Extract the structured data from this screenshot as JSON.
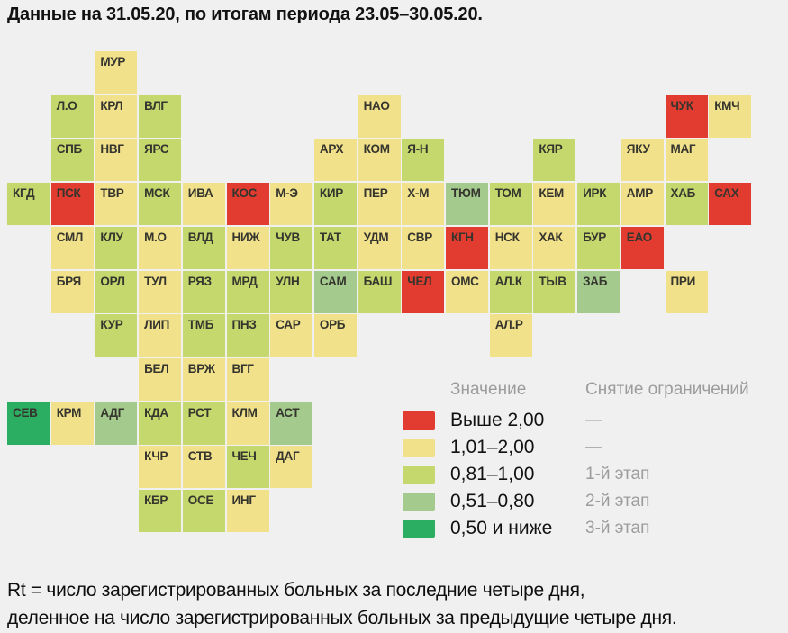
{
  "title": "Данные на 31.05.20, по итогам периода 23.05–30.05.20.",
  "footnote": {
    "line1": "Rt = число зарегистрированных больных за последние четыре дня,",
    "line2": "деленное на число зарегистрированных больных за предыдущие четыре дня."
  },
  "legend_headers": {
    "value": "Значение",
    "stage": "Снятие ограничений"
  },
  "chart_data": {
    "type": "heatmap",
    "title": "Данные на 31.05.20, по итогам периода 23.05–30.05.20.",
    "metric": "Rt",
    "grid": {
      "columns": 17,
      "rows": 11
    },
    "colors": {
      "red": "#e23b30",
      "yellow": "#f2e18b",
      "green_light": "#c4d86d",
      "green_mid": "#a4ca8e",
      "green_dark": "#2bad62"
    },
    "legend": [
      {
        "key": "red",
        "label": "Выше 2,00",
        "stage": "—"
      },
      {
        "key": "yellow",
        "label": "1,01–2,00",
        "stage": "—"
      },
      {
        "key": "green_light",
        "label": "0,81–1,00",
        "stage": "1-й этап"
      },
      {
        "key": "green_mid",
        "label": "0,51–0,80",
        "stage": "2-й этап"
      },
      {
        "key": "green_dark",
        "label": "0,50 и ниже",
        "stage": "3-й этап"
      }
    ],
    "tiles": [
      {
        "code": "МУР",
        "row": 0,
        "col": 2,
        "key": "yellow"
      },
      {
        "code": "Л.О",
        "row": 1,
        "col": 1,
        "key": "green_light"
      },
      {
        "code": "КРЛ",
        "row": 1,
        "col": 2,
        "key": "yellow"
      },
      {
        "code": "ВЛГ",
        "row": 1,
        "col": 3,
        "key": "green_light"
      },
      {
        "code": "НАО",
        "row": 1,
        "col": 8,
        "key": "yellow"
      },
      {
        "code": "ЧУК",
        "row": 1,
        "col": 15,
        "key": "red"
      },
      {
        "code": "КМЧ",
        "row": 1,
        "col": 16,
        "key": "yellow"
      },
      {
        "code": "СПБ",
        "row": 2,
        "col": 1,
        "key": "green_light"
      },
      {
        "code": "НВГ",
        "row": 2,
        "col": 2,
        "key": "yellow"
      },
      {
        "code": "ЯРС",
        "row": 2,
        "col": 3,
        "key": "green_light"
      },
      {
        "code": "АРХ",
        "row": 2,
        "col": 7,
        "key": "yellow"
      },
      {
        "code": "КОМ",
        "row": 2,
        "col": 8,
        "key": "yellow"
      },
      {
        "code": "Я-Н",
        "row": 2,
        "col": 9,
        "key": "green_light"
      },
      {
        "code": "КЯР",
        "row": 2,
        "col": 12,
        "key": "green_light"
      },
      {
        "code": "ЯКУ",
        "row": 2,
        "col": 14,
        "key": "yellow"
      },
      {
        "code": "МАГ",
        "row": 2,
        "col": 15,
        "key": "yellow"
      },
      {
        "code": "КГД",
        "row": 3,
        "col": 0,
        "key": "green_light"
      },
      {
        "code": "ПСК",
        "row": 3,
        "col": 1,
        "key": "red"
      },
      {
        "code": "ТВР",
        "row": 3,
        "col": 2,
        "key": "yellow"
      },
      {
        "code": "МСК",
        "row": 3,
        "col": 3,
        "key": "green_light"
      },
      {
        "code": "ИВА",
        "row": 3,
        "col": 4,
        "key": "yellow"
      },
      {
        "code": "КОС",
        "row": 3,
        "col": 5,
        "key": "red"
      },
      {
        "code": "М-Э",
        "row": 3,
        "col": 6,
        "key": "yellow"
      },
      {
        "code": "КИР",
        "row": 3,
        "col": 7,
        "key": "green_light"
      },
      {
        "code": "ПЕР",
        "row": 3,
        "col": 8,
        "key": "yellow"
      },
      {
        "code": "Х-М",
        "row": 3,
        "col": 9,
        "key": "yellow"
      },
      {
        "code": "ТЮМ",
        "row": 3,
        "col": 10,
        "key": "green_mid"
      },
      {
        "code": "ТОМ",
        "row": 3,
        "col": 11,
        "key": "green_light"
      },
      {
        "code": "КЕМ",
        "row": 3,
        "col": 12,
        "key": "yellow"
      },
      {
        "code": "ИРК",
        "row": 3,
        "col": 13,
        "key": "green_light"
      },
      {
        "code": "АМР",
        "row": 3,
        "col": 14,
        "key": "yellow"
      },
      {
        "code": "ХАБ",
        "row": 3,
        "col": 15,
        "key": "green_light"
      },
      {
        "code": "САХ",
        "row": 3,
        "col": 16,
        "key": "red"
      },
      {
        "code": "СМЛ",
        "row": 4,
        "col": 1,
        "key": "yellow"
      },
      {
        "code": "КЛУ",
        "row": 4,
        "col": 2,
        "key": "green_light"
      },
      {
        "code": "М.О",
        "row": 4,
        "col": 3,
        "key": "yellow"
      },
      {
        "code": "ВЛД",
        "row": 4,
        "col": 4,
        "key": "green_light"
      },
      {
        "code": "НИЖ",
        "row": 4,
        "col": 5,
        "key": "yellow"
      },
      {
        "code": "ЧУВ",
        "row": 4,
        "col": 6,
        "key": "green_light"
      },
      {
        "code": "ТАТ",
        "row": 4,
        "col": 7,
        "key": "green_light"
      },
      {
        "code": "УДМ",
        "row": 4,
        "col": 8,
        "key": "yellow"
      },
      {
        "code": "СВР",
        "row": 4,
        "col": 9,
        "key": "yellow"
      },
      {
        "code": "КГН",
        "row": 4,
        "col": 10,
        "key": "red"
      },
      {
        "code": "НСК",
        "row": 4,
        "col": 11,
        "key": "yellow"
      },
      {
        "code": "ХАК",
        "row": 4,
        "col": 12,
        "key": "yellow"
      },
      {
        "code": "БУР",
        "row": 4,
        "col": 13,
        "key": "green_light"
      },
      {
        "code": "ЕАО",
        "row": 4,
        "col": 14,
        "key": "red"
      },
      {
        "code": "БРЯ",
        "row": 5,
        "col": 1,
        "key": "yellow"
      },
      {
        "code": "ОРЛ",
        "row": 5,
        "col": 2,
        "key": "green_light"
      },
      {
        "code": "ТУЛ",
        "row": 5,
        "col": 3,
        "key": "yellow"
      },
      {
        "code": "РЯЗ",
        "row": 5,
        "col": 4,
        "key": "green_light"
      },
      {
        "code": "МРД",
        "row": 5,
        "col": 5,
        "key": "green_light"
      },
      {
        "code": "УЛН",
        "row": 5,
        "col": 6,
        "key": "green_light"
      },
      {
        "code": "САМ",
        "row": 5,
        "col": 7,
        "key": "green_mid"
      },
      {
        "code": "БАШ",
        "row": 5,
        "col": 8,
        "key": "green_light"
      },
      {
        "code": "ЧЕЛ",
        "row": 5,
        "col": 9,
        "key": "red"
      },
      {
        "code": "ОМС",
        "row": 5,
        "col": 10,
        "key": "yellow"
      },
      {
        "code": "АЛ.К",
        "row": 5,
        "col": 11,
        "key": "green_light"
      },
      {
        "code": "ТЫВ",
        "row": 5,
        "col": 12,
        "key": "green_light"
      },
      {
        "code": "ЗАБ",
        "row": 5,
        "col": 13,
        "key": "green_mid"
      },
      {
        "code": "ПРИ",
        "row": 5,
        "col": 15,
        "key": "yellow"
      },
      {
        "code": "КУР",
        "row": 6,
        "col": 2,
        "key": "green_light"
      },
      {
        "code": "ЛИП",
        "row": 6,
        "col": 3,
        "key": "yellow"
      },
      {
        "code": "ТМБ",
        "row": 6,
        "col": 4,
        "key": "green_light"
      },
      {
        "code": "ПНЗ",
        "row": 6,
        "col": 5,
        "key": "green_light"
      },
      {
        "code": "САР",
        "row": 6,
        "col": 6,
        "key": "yellow"
      },
      {
        "code": "ОРБ",
        "row": 6,
        "col": 7,
        "key": "yellow"
      },
      {
        "code": "АЛ.Р",
        "row": 6,
        "col": 11,
        "key": "yellow"
      },
      {
        "code": "БЕЛ",
        "row": 7,
        "col": 3,
        "key": "yellow"
      },
      {
        "code": "ВРЖ",
        "row": 7,
        "col": 4,
        "key": "yellow"
      },
      {
        "code": "ВГГ",
        "row": 7,
        "col": 5,
        "key": "yellow"
      },
      {
        "code": "СЕВ",
        "row": 8,
        "col": 0,
        "key": "green_dark"
      },
      {
        "code": "КРМ",
        "row": 8,
        "col": 1,
        "key": "yellow"
      },
      {
        "code": "АДГ",
        "row": 8,
        "col": 2,
        "key": "green_mid"
      },
      {
        "code": "КДА",
        "row": 8,
        "col": 3,
        "key": "green_light"
      },
      {
        "code": "РСТ",
        "row": 8,
        "col": 4,
        "key": "green_light"
      },
      {
        "code": "КЛМ",
        "row": 8,
        "col": 5,
        "key": "yellow"
      },
      {
        "code": "АСТ",
        "row": 8,
        "col": 6,
        "key": "green_mid"
      },
      {
        "code": "КЧР",
        "row": 9,
        "col": 3,
        "key": "yellow"
      },
      {
        "code": "СТВ",
        "row": 9,
        "col": 4,
        "key": "yellow"
      },
      {
        "code": "ЧЕЧ",
        "row": 9,
        "col": 5,
        "key": "green_light"
      },
      {
        "code": "ДАГ",
        "row": 9,
        "col": 6,
        "key": "yellow"
      },
      {
        "code": "КБР",
        "row": 10,
        "col": 3,
        "key": "green_light"
      },
      {
        "code": "ОСЕ",
        "row": 10,
        "col": 4,
        "key": "green_light"
      },
      {
        "code": "ИНГ",
        "row": 10,
        "col": 5,
        "key": "yellow"
      }
    ]
  }
}
